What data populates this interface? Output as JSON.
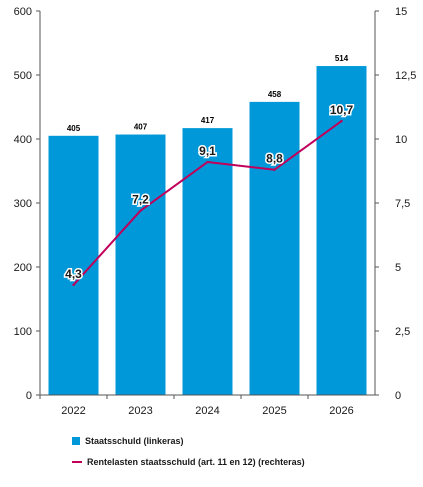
{
  "chart_data": {
    "type": "bar+line",
    "categories": [
      "2022",
      "2023",
      "2024",
      "2025",
      "2026"
    ],
    "series": [
      {
        "name": "Staatsschuld (linkeras)",
        "type": "bar",
        "axis": "left",
        "values": [
          405,
          407,
          417,
          458,
          514
        ],
        "labels": [
          "405",
          "407",
          "417",
          "458",
          "514"
        ],
        "color": "#0098d8"
      },
      {
        "name": "Rentelasten staatsschuld (art. 11 en 12) (rechteras)",
        "type": "line",
        "axis": "right",
        "values": [
          4.3,
          7.2,
          9.1,
          8.8,
          10.7
        ],
        "labels": [
          "4,3",
          "7,2",
          "9,1",
          "8,8",
          "10,7"
        ],
        "color": "#c0005a"
      }
    ],
    "left_axis": {
      "ylim": [
        0,
        600
      ],
      "ticks": [
        "0",
        "100",
        "200",
        "300",
        "400",
        "500",
        "600"
      ]
    },
    "right_axis": {
      "ylim": [
        0,
        15
      ],
      "ticks": [
        "0",
        "2,5",
        "5",
        "7,5",
        "10",
        "12,5",
        "15"
      ]
    },
    "grid": false,
    "legend_position": "bottom-left"
  }
}
